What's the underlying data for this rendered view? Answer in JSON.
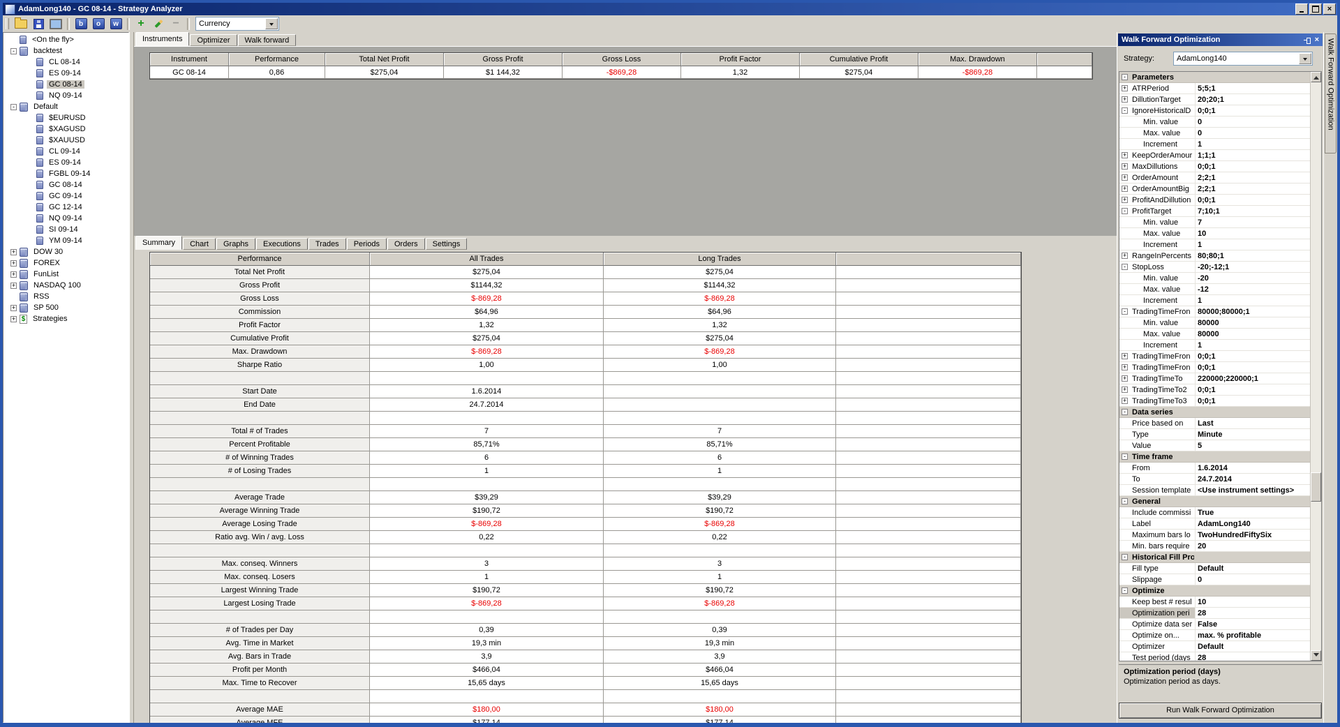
{
  "window": {
    "title": "AdamLong140 - GC 08-14 - Strategy Analyzer"
  },
  "toolbar": {
    "currency_combo": "Currency",
    "icons": [
      "open",
      "save",
      "display",
      "backtest-b",
      "optimizer-o",
      "walkforward-w",
      "add",
      "edit",
      "remove"
    ],
    "letter_buttons": [
      "b",
      "o",
      "w"
    ]
  },
  "tree": {
    "items": [
      {
        "label": "<On the fly>",
        "level": 1,
        "icon": "db"
      },
      {
        "label": "backtest",
        "level": 0,
        "expander": "-",
        "icon": "dbs"
      },
      {
        "label": "CL 08-14",
        "level": 2,
        "icon": "db"
      },
      {
        "label": "ES 09-14",
        "level": 2,
        "icon": "db"
      },
      {
        "label": "GC 08-14",
        "level": 2,
        "icon": "db",
        "selected": true
      },
      {
        "label": "NQ 09-14",
        "level": 2,
        "icon": "db"
      },
      {
        "label": "Default",
        "level": 0,
        "expander": "-",
        "icon": "dbs"
      },
      {
        "label": "$EURUSD",
        "level": 2,
        "icon": "db"
      },
      {
        "label": "$XAGUSD",
        "level": 2,
        "icon": "db"
      },
      {
        "label": "$XAUUSD",
        "level": 2,
        "icon": "db"
      },
      {
        "label": "CL 09-14",
        "level": 2,
        "icon": "db"
      },
      {
        "label": "ES 09-14",
        "level": 2,
        "icon": "db"
      },
      {
        "label": "FGBL 09-14",
        "level": 2,
        "icon": "db"
      },
      {
        "label": "GC 08-14",
        "level": 2,
        "icon": "db"
      },
      {
        "label": "GC 09-14",
        "level": 2,
        "icon": "db"
      },
      {
        "label": "GC 12-14",
        "level": 2,
        "icon": "db"
      },
      {
        "label": "NQ 09-14",
        "level": 2,
        "icon": "db"
      },
      {
        "label": "SI 09-14",
        "level": 2,
        "icon": "db"
      },
      {
        "label": "YM 09-14",
        "level": 2,
        "icon": "db"
      },
      {
        "label": "DOW 30",
        "level": 0,
        "expander": "+",
        "icon": "dbs"
      },
      {
        "label": "FOREX",
        "level": 0,
        "expander": "+",
        "icon": "dbs"
      },
      {
        "label": "FunList",
        "level": 0,
        "expander": "+",
        "icon": "dbs"
      },
      {
        "label": "NASDAQ 100",
        "level": 0,
        "expander": "+",
        "icon": "dbs"
      },
      {
        "label": "RSS",
        "level": 1,
        "icon": "dbs"
      },
      {
        "label": "SP 500",
        "level": 0,
        "expander": "+",
        "icon": "dbs"
      },
      {
        "label": "Strategies",
        "level": 0,
        "expander": "+",
        "icon": "strat"
      }
    ]
  },
  "center": {
    "top_tabs": [
      {
        "label": "Instruments",
        "active": true
      },
      {
        "label": "Optimizer",
        "active": false
      },
      {
        "label": "Walk forward",
        "active": false
      }
    ],
    "instruments_table": {
      "columns": [
        "Instrument",
        "Performance",
        "Total Net Profit",
        "Gross Profit",
        "Gross Loss",
        "Profit Factor",
        "Cumulative Profit",
        "Max. Drawdown",
        ""
      ],
      "rows": [
        {
          "cells": [
            "GC 08-14",
            "0,86",
            "$275,04",
            "$1 144,32",
            "-$869,28",
            "1,32",
            "$275,04",
            "-$869,28",
            ""
          ],
          "neg_cols": [
            4,
            7
          ]
        }
      ]
    },
    "bottom_tabs": [
      {
        "label": "Summary",
        "active": true
      },
      {
        "label": "Chart",
        "active": false
      },
      {
        "label": "Graphs",
        "active": false
      },
      {
        "label": "Executions",
        "active": false
      },
      {
        "label": "Trades",
        "active": false
      },
      {
        "label": "Periods",
        "active": false
      },
      {
        "label": "Orders",
        "active": false
      },
      {
        "label": "Settings",
        "active": false
      }
    ],
    "summary_table": {
      "columns": [
        "Performance",
        "All Trades",
        "Long Trades",
        ""
      ],
      "rows": [
        {
          "label": "Total Net Profit",
          "all": "$275,04",
          "long": "$275,04"
        },
        {
          "label": "Gross Profit",
          "all": "$1144,32",
          "long": "$1144,32"
        },
        {
          "label": "Gross Loss",
          "all": "$-869,28",
          "long": "$-869,28",
          "neg": true
        },
        {
          "label": "Commission",
          "all": "$64,96",
          "long": "$64,96"
        },
        {
          "label": "Profit Factor",
          "all": "1,32",
          "long": "1,32"
        },
        {
          "label": "Cumulative Profit",
          "all": "$275,04",
          "long": "$275,04"
        },
        {
          "label": "Max. Drawdown",
          "all": "$-869,28",
          "long": "$-869,28",
          "neg": true
        },
        {
          "label": "Sharpe Ratio",
          "all": "1,00",
          "long": "1,00"
        },
        {
          "label": "",
          "all": "",
          "long": ""
        },
        {
          "label": "Start Date",
          "all": "1.6.2014",
          "long": ""
        },
        {
          "label": "End Date",
          "all": "24.7.2014",
          "long": ""
        },
        {
          "label": "",
          "all": "",
          "long": ""
        },
        {
          "label": "Total # of Trades",
          "all": "7",
          "long": "7"
        },
        {
          "label": "Percent Profitable",
          "all": "85,71%",
          "long": "85,71%"
        },
        {
          "label": "# of Winning Trades",
          "all": "6",
          "long": "6"
        },
        {
          "label": "# of Losing Trades",
          "all": "1",
          "long": "1"
        },
        {
          "label": "",
          "all": "",
          "long": ""
        },
        {
          "label": "Average Trade",
          "all": "$39,29",
          "long": "$39,29"
        },
        {
          "label": "Average Winning Trade",
          "all": "$190,72",
          "long": "$190,72"
        },
        {
          "label": "Average Losing Trade",
          "all": "$-869,28",
          "long": "$-869,28",
          "neg": true
        },
        {
          "label": "Ratio avg. Win / avg. Loss",
          "all": "0,22",
          "long": "0,22"
        },
        {
          "label": "",
          "all": "",
          "long": ""
        },
        {
          "label": "Max. conseq. Winners",
          "all": "3",
          "long": "3"
        },
        {
          "label": "Max. conseq. Losers",
          "all": "1",
          "long": "1"
        },
        {
          "label": "Largest Winning Trade",
          "all": "$190,72",
          "long": "$190,72"
        },
        {
          "label": "Largest Losing Trade",
          "all": "$-869,28",
          "long": "$-869,28",
          "neg": true
        },
        {
          "label": "",
          "all": "",
          "long": ""
        },
        {
          "label": "# of Trades per Day",
          "all": "0,39",
          "long": "0,39"
        },
        {
          "label": "Avg. Time in Market",
          "all": "19,3 min",
          "long": "19,3 min"
        },
        {
          "label": "Avg. Bars in Trade",
          "all": "3,9",
          "long": "3,9"
        },
        {
          "label": "Profit per Month",
          "all": "$466,04",
          "long": "$466,04"
        },
        {
          "label": "Max. Time to Recover",
          "all": "15,65 days",
          "long": "15,65 days"
        },
        {
          "label": "",
          "all": "",
          "long": ""
        },
        {
          "label": "Average MAE",
          "all": "$180,00",
          "long": "$180,00",
          "neg": true
        },
        {
          "label": "Average MFE",
          "all": "$177,14",
          "long": "$177,14"
        }
      ]
    }
  },
  "wfo": {
    "title": "Walk Forward Optimization",
    "side_tab": "Walk Forward Optimization",
    "strategy_label": "Strategy:",
    "strategy_value": "AdamLong140",
    "description_title": "Optimization period (days)",
    "description_text": "Optimization period as days.",
    "run_button": "Run Walk Forward Optimization",
    "grid": [
      {
        "t": "cat",
        "exp": "-",
        "label": "Parameters",
        "value": ""
      },
      {
        "t": "item",
        "exp": "+",
        "label": "ATRPeriod",
        "value": "5;5;1"
      },
      {
        "t": "item",
        "exp": "+",
        "label": "DillutionTarget",
        "value": "20;20;1"
      },
      {
        "t": "item",
        "exp": "-",
        "label": "IgnoreHistoricalD",
        "value": "0;0;1"
      },
      {
        "t": "sub",
        "exp": "",
        "label": "Min. value",
        "value": "0"
      },
      {
        "t": "sub",
        "exp": "",
        "label": "Max. value",
        "value": "0"
      },
      {
        "t": "sub",
        "exp": "",
        "label": "Increment",
        "value": "1"
      },
      {
        "t": "item",
        "exp": "+",
        "label": "KeepOrderAmour",
        "value": "1;1;1"
      },
      {
        "t": "item",
        "exp": "+",
        "label": "MaxDillutions",
        "value": "0;0;1"
      },
      {
        "t": "item",
        "exp": "+",
        "label": "OrderAmount",
        "value": "2;2;1"
      },
      {
        "t": "item",
        "exp": "+",
        "label": "OrderAmountBig",
        "value": "2;2;1"
      },
      {
        "t": "item",
        "exp": "+",
        "label": "ProfitAndDillution",
        "value": "0;0;1"
      },
      {
        "t": "item",
        "exp": "-",
        "label": "ProfitTarget",
        "value": "7;10;1"
      },
      {
        "t": "sub",
        "exp": "",
        "label": "Min. value",
        "value": "7"
      },
      {
        "t": "sub",
        "exp": "",
        "label": "Max. value",
        "value": "10"
      },
      {
        "t": "sub",
        "exp": "",
        "label": "Increment",
        "value": "1"
      },
      {
        "t": "item",
        "exp": "+",
        "label": "RangeInPercents",
        "value": "80;80;1"
      },
      {
        "t": "item",
        "exp": "-",
        "label": "StopLoss",
        "value": "-20;-12;1"
      },
      {
        "t": "sub",
        "exp": "",
        "label": "Min. value",
        "value": "-20"
      },
      {
        "t": "sub",
        "exp": "",
        "label": "Max. value",
        "value": "-12"
      },
      {
        "t": "sub",
        "exp": "",
        "label": "Increment",
        "value": "1"
      },
      {
        "t": "item",
        "exp": "-",
        "label": "TradingTimeFron",
        "value": "80000;80000;1"
      },
      {
        "t": "sub",
        "exp": "",
        "label": "Min. value",
        "value": "80000"
      },
      {
        "t": "sub",
        "exp": "",
        "label": "Max. value",
        "value": "80000"
      },
      {
        "t": "sub",
        "exp": "",
        "label": "Increment",
        "value": "1"
      },
      {
        "t": "item",
        "exp": "+",
        "label": "TradingTimeFron",
        "value": "0;0;1"
      },
      {
        "t": "item",
        "exp": "+",
        "label": "TradingTimeFron",
        "value": "0;0;1"
      },
      {
        "t": "item",
        "exp": "+",
        "label": "TradingTimeTo",
        "value": "220000;220000;1"
      },
      {
        "t": "item",
        "exp": "+",
        "label": "TradingTimeTo2",
        "value": "0;0;1"
      },
      {
        "t": "item",
        "exp": "+",
        "label": "TradingTimeTo3",
        "value": "0;0;1"
      },
      {
        "t": "cat",
        "exp": "-",
        "label": "Data series",
        "value": ""
      },
      {
        "t": "item",
        "exp": "",
        "label": "Price based on",
        "value": "Last"
      },
      {
        "t": "item",
        "exp": "",
        "label": "Type",
        "value": "Minute"
      },
      {
        "t": "item",
        "exp": "",
        "label": "Value",
        "value": "5"
      },
      {
        "t": "cat",
        "exp": "-",
        "label": "Time frame",
        "value": ""
      },
      {
        "t": "item",
        "exp": "",
        "label": "From",
        "value": "1.6.2014"
      },
      {
        "t": "item",
        "exp": "",
        "label": "To",
        "value": "24.7.2014"
      },
      {
        "t": "item",
        "exp": "",
        "label": "Session template",
        "value": "<Use instrument settings>"
      },
      {
        "t": "cat",
        "exp": "-",
        "label": "General",
        "value": ""
      },
      {
        "t": "item",
        "exp": "",
        "label": "Include commissi",
        "value": "True"
      },
      {
        "t": "item",
        "exp": "",
        "label": "Label",
        "value": "AdamLong140"
      },
      {
        "t": "item",
        "exp": "",
        "label": "Maximum bars lo",
        "value": "TwoHundredFiftySix"
      },
      {
        "t": "item",
        "exp": "",
        "label": "Min. bars require",
        "value": "20"
      },
      {
        "t": "cat",
        "exp": "-",
        "label": "Historical Fill Processing",
        "value": ""
      },
      {
        "t": "item",
        "exp": "",
        "label": "Fill type",
        "value": "Default"
      },
      {
        "t": "item",
        "exp": "",
        "label": "Slippage",
        "value": "0"
      },
      {
        "t": "cat",
        "exp": "-",
        "label": "Optimize",
        "value": ""
      },
      {
        "t": "item",
        "exp": "",
        "label": "Keep best # resul",
        "value": "10"
      },
      {
        "t": "item",
        "exp": "",
        "label": "Optimization peri",
        "value": "28",
        "sel": true
      },
      {
        "t": "item",
        "exp": "",
        "label": "Optimize data ser",
        "value": "False"
      },
      {
        "t": "item",
        "exp": "",
        "label": "Optimize on...",
        "value": "max. % profitable"
      },
      {
        "t": "item",
        "exp": "",
        "label": "Optimizer",
        "value": "Default"
      },
      {
        "t": "item",
        "exp": "",
        "label": "Test period (days",
        "value": "28"
      }
    ]
  },
  "colors": {
    "titlebar": "#0a246a",
    "chrome": "#d5d2ca",
    "void": "#a6a6a2",
    "negative": "#e80000"
  }
}
